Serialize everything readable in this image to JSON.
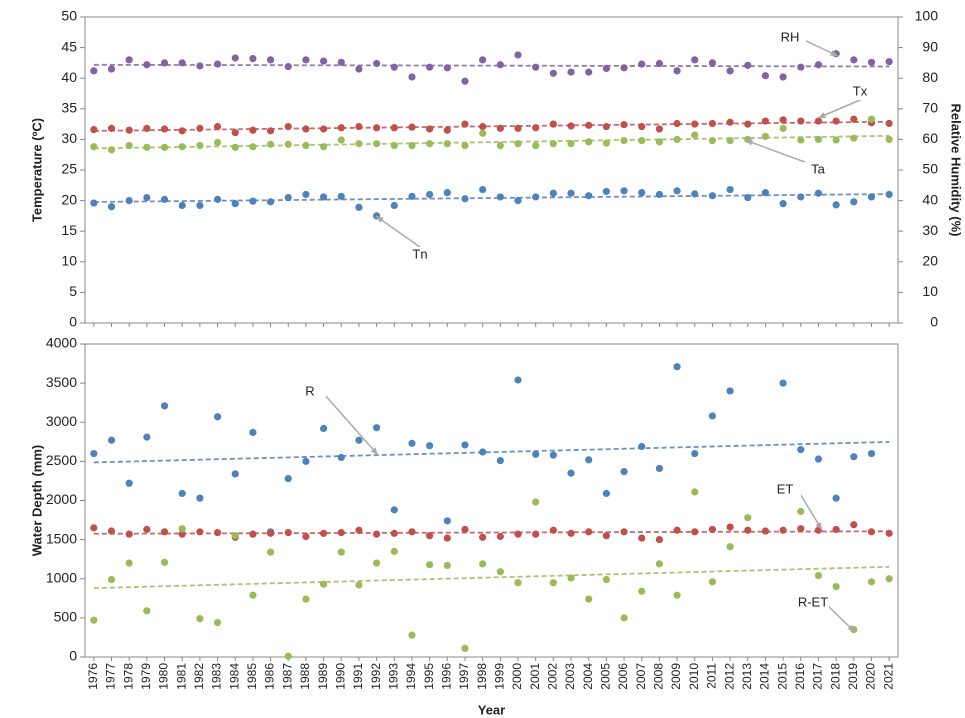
{
  "chart_data": [
    {
      "type": "scatter",
      "ylabel": "Temperature (ºC)",
      "y2label": "Relative Humidity (%)",
      "x": [
        1976,
        1977,
        1978,
        1979,
        1980,
        1981,
        1982,
        1983,
        1984,
        1985,
        1986,
        1987,
        1988,
        1989,
        1990,
        1991,
        1992,
        1993,
        1994,
        1995,
        1996,
        1997,
        1998,
        1999,
        2000,
        2001,
        2002,
        2003,
        2004,
        2005,
        2006,
        2007,
        2008,
        2009,
        2010,
        2011,
        2012,
        2013,
        2014,
        2015,
        2016,
        2017,
        2018,
        2019,
        2020,
        2021
      ],
      "xlim": [
        1975.5,
        2021.5
      ],
      "ylim": [
        0,
        50
      ],
      "yticks": [
        0,
        5,
        10,
        15,
        20,
        25,
        30,
        35,
        40,
        45,
        50
      ],
      "y2lim": [
        0,
        100
      ],
      "y2ticks": [
        0,
        10,
        20,
        30,
        40,
        50,
        60,
        70,
        80,
        90,
        100
      ],
      "trendline": true,
      "series": [
        {
          "name": "RH",
          "color": "#8064a2",
          "axis": "y2",
          "values": [
            82.4,
            83,
            86,
            84.4,
            85,
            85,
            84,
            84.6,
            86.6,
            86.4,
            86,
            83.8,
            86,
            85.6,
            85.2,
            83,
            84.8,
            83.6,
            80.4,
            83.6,
            83.4,
            79,
            86,
            84.4,
            87.6,
            83.6,
            81.6,
            82,
            82,
            83.2,
            83.4,
            84.6,
            84.8,
            82.4,
            86,
            85,
            82.4,
            84.2,
            80.8,
            80.4,
            83.6,
            84.4,
            88,
            86,
            85.2,
            85.4
          ]
        },
        {
          "name": "Tx",
          "color": "#c0504d",
          "values": [
            31.6,
            31.8,
            31.5,
            31.8,
            31.7,
            31.4,
            31.8,
            32.1,
            31.1,
            31.5,
            31.4,
            32.1,
            31.7,
            31.7,
            31.9,
            32.1,
            31.9,
            31.9,
            32,
            31.7,
            31.5,
            32.5,
            32.1,
            31.8,
            31.8,
            31.9,
            32.5,
            32.2,
            32.3,
            32.1,
            32.4,
            32.1,
            31.7,
            32.6,
            32.5,
            32.6,
            32.8,
            32.5,
            33,
            33.2,
            33,
            33,
            33,
            33.3,
            32.7,
            32.6
          ]
        },
        {
          "name": "Ta",
          "color": "#9bbb59",
          "values": [
            28.8,
            28.3,
            29,
            28.7,
            28.7,
            28.8,
            29,
            29.5,
            28.7,
            28.8,
            29.2,
            29.2,
            29,
            28.8,
            29.9,
            29.3,
            29.3,
            29,
            29,
            29.3,
            29.3,
            29,
            31,
            29,
            29.3,
            29,
            29.3,
            29.3,
            29.6,
            29.4,
            29.8,
            29.8,
            29.6,
            30,
            30.7,
            29.8,
            29.8,
            30,
            30.5,
            31.8,
            29.9,
            30,
            29.9,
            30.2,
            33.3,
            30
          ]
        },
        {
          "name": "Tn",
          "color": "#4f81bd",
          "values": [
            19.6,
            19,
            20,
            20.5,
            20.2,
            19.2,
            19.2,
            20.2,
            19.5,
            19.9,
            19.8,
            20.5,
            21,
            20.6,
            20.7,
            18.9,
            17.5,
            19.2,
            20.7,
            21,
            21.3,
            20.3,
            21.8,
            20.6,
            20,
            20.6,
            21.2,
            21.2,
            20.8,
            21.5,
            21.6,
            21.3,
            21,
            21.6,
            21.1,
            20.8,
            21.8,
            20.5,
            21.3,
            19.5,
            20.6,
            21.2,
            19.3,
            19.8,
            20.6,
            21
          ]
        }
      ]
    },
    {
      "type": "scatter",
      "ylabel": "Water Depth (mm)",
      "xlabel": "Year",
      "x": [
        1976,
        1977,
        1978,
        1979,
        1980,
        1981,
        1982,
        1983,
        1984,
        1985,
        1986,
        1987,
        1988,
        1989,
        1990,
        1991,
        1992,
        1993,
        1994,
        1995,
        1996,
        1997,
        1998,
        1999,
        2000,
        2001,
        2002,
        2003,
        2004,
        2005,
        2006,
        2007,
        2008,
        2009,
        2010,
        2011,
        2012,
        2013,
        2014,
        2015,
        2016,
        2017,
        2018,
        2019,
        2020,
        2021
      ],
      "xlim": [
        1975.5,
        2021.5
      ],
      "ylim": [
        0,
        4000
      ],
      "yticks": [
        0,
        500,
        1000,
        1500,
        2000,
        2500,
        3000,
        3500,
        4000
      ],
      "trendline": true,
      "series": [
        {
          "name": "R",
          "color": "#4f81bd",
          "values": [
            2600,
            2770,
            2220,
            2810,
            3210,
            2090,
            2030,
            3070,
            2340,
            2870,
            1600,
            2280,
            2500,
            2920,
            2550,
            2770,
            2930,
            1880,
            2730,
            2700,
            1740,
            2710,
            2620,
            2510,
            3540,
            2590,
            2580,
            2350,
            2520,
            2090,
            2370,
            2690,
            2410,
            3710,
            2600,
            3080,
            3400,
            null,
            null,
            3500,
            2650,
            2530,
            2030,
            2560,
            2600,
            null
          ]
        },
        {
          "name": "ET",
          "color": "#c0504d",
          "values": [
            1650,
            1610,
            1570,
            1630,
            1600,
            1570,
            1600,
            1590,
            1530,
            1570,
            1580,
            1590,
            1540,
            1580,
            1590,
            1620,
            1570,
            1580,
            1600,
            1550,
            1520,
            1630,
            1530,
            1540,
            1570,
            1570,
            1620,
            1580,
            1600,
            1550,
            1600,
            1520,
            1500,
            1620,
            1600,
            1630,
            1660,
            1620,
            1610,
            1620,
            1640,
            1620,
            1630,
            1690,
            1600,
            1580
          ]
        },
        {
          "name": "R-ET",
          "color": "#9bbb59",
          "values": [
            470,
            990,
            1200,
            590,
            1210,
            1640,
            490,
            440,
            1550,
            790,
            1340,
            10,
            740,
            930,
            1340,
            920,
            1200,
            1350,
            280,
            1180,
            1170,
            110,
            1190,
            1090,
            950,
            1980,
            950,
            1010,
            740,
            990,
            500,
            840,
            1190,
            790,
            2110,
            960,
            1410,
            1780,
            null,
            null,
            1860,
            1040,
            900,
            350,
            960,
            1000
          ]
        }
      ]
    }
  ]
}
